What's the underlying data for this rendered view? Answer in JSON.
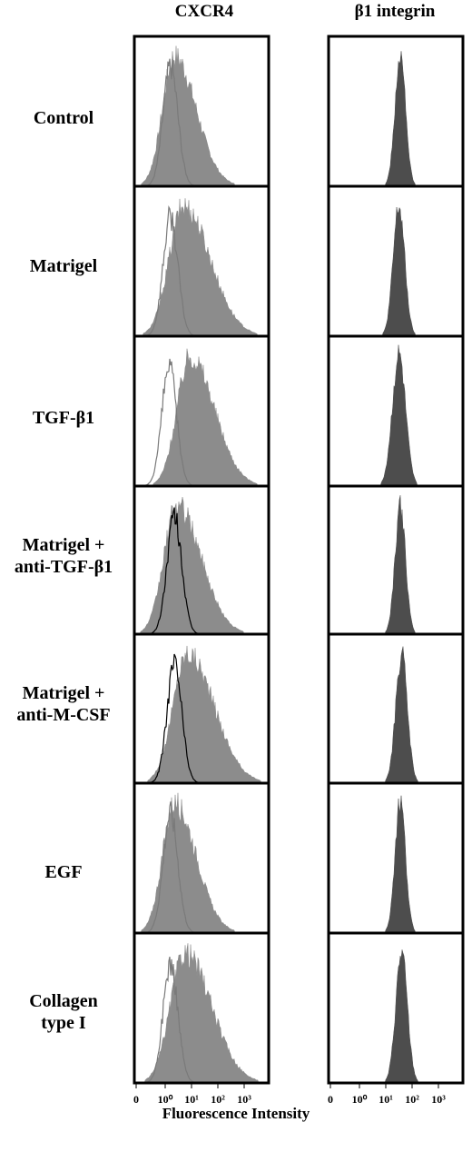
{
  "columns": [
    "CXCR4",
    "β1 integrin"
  ],
  "rows": [
    [
      "Control"
    ],
    [
      "Matrigel"
    ],
    [
      "TGF-β1"
    ],
    [
      "Matrigel +",
      "anti-TGF-β1"
    ],
    [
      "Matrigel +",
      "anti-M-CSF"
    ],
    [
      "EGF"
    ],
    [
      "Collagen",
      "type I"
    ]
  ],
  "chart_data": {
    "type": "histogram-grid",
    "xlabel": "Fluorescence Intensity",
    "x_scale": "log",
    "xlim": [
      "0",
      "10³"
    ],
    "x_tick_labels": [
      "0",
      "10⁰",
      "10¹",
      "10²",
      "10³"
    ],
    "colors": {
      "cxcr4_fill": "#8c8c8c",
      "integrin_fill": "#4d4d4d",
      "control_line": "#000000"
    },
    "panels": [
      {
        "row": "Control",
        "column": "CXCR4",
        "stained_peak": 0.35,
        "stained_sd": 0.45,
        "isotype_peak": 0.2,
        "isotype_line": "gray"
      },
      {
        "row": "Matrigel",
        "column": "CXCR4",
        "stained_peak": 0.7,
        "stained_sd": 0.55,
        "isotype_peak": 0.2,
        "isotype_line": "gray"
      },
      {
        "row": "TGF-β1",
        "column": "CXCR4",
        "stained_peak": 0.95,
        "stained_sd": 0.5,
        "isotype_peak": 0.15,
        "isotype_line": "gray"
      },
      {
        "row": "Matrigel + anti-TGF-β1",
        "column": "CXCR4",
        "stained_peak": 0.45,
        "stained_sd": 0.5,
        "isotype_peak": 0.35,
        "isotype_line": "black"
      },
      {
        "row": "Matrigel + anti-M-CSF",
        "column": "CXCR4",
        "stained_peak": 0.85,
        "stained_sd": 0.55,
        "isotype_peak": 0.35,
        "isotype_line": "black"
      },
      {
        "row": "EGF",
        "column": "CXCR4",
        "stained_peak": 0.35,
        "stained_sd": 0.45,
        "isotype_peak": 0.2,
        "isotype_line": "gray"
      },
      {
        "row": "Collagen type I",
        "column": "CXCR4",
        "stained_peak": 0.75,
        "stained_sd": 0.55,
        "isotype_peak": 0.2,
        "isotype_line": "gray"
      },
      {
        "row": "Control",
        "column": "β1 integrin",
        "stained_peak": 1.55,
        "stained_sd": 0.2
      },
      {
        "row": "Matrigel",
        "column": "β1 integrin",
        "stained_peak": 1.5,
        "stained_sd": 0.22
      },
      {
        "row": "TGF-β1",
        "column": "β1 integrin",
        "stained_peak": 1.5,
        "stained_sd": 0.25
      },
      {
        "row": "Matrigel + anti-TGF-β1",
        "column": "β1 integrin",
        "stained_peak": 1.55,
        "stained_sd": 0.2
      },
      {
        "row": "Matrigel + anti-M-CSF",
        "column": "β1 integrin",
        "stained_peak": 1.6,
        "stained_sd": 0.22
      },
      {
        "row": "EGF",
        "column": "β1 integrin",
        "stained_peak": 1.55,
        "stained_sd": 0.2
      },
      {
        "row": "Collagen type I",
        "column": "β1 integrin",
        "stained_peak": 1.6,
        "stained_sd": 0.22
      }
    ]
  }
}
